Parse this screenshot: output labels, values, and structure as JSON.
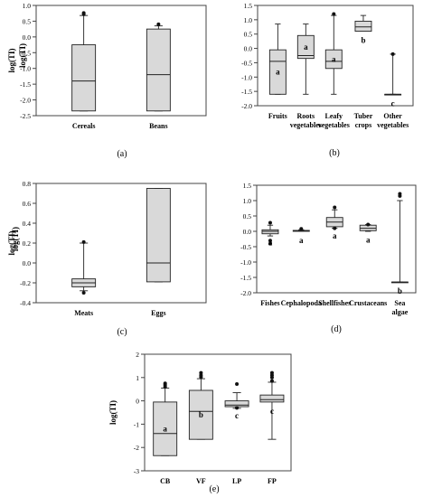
{
  "chart_data": [
    {
      "panel": "(a)",
      "type": "box",
      "ylabel": "log(TI)",
      "ylim": [
        -2.5,
        1.0
      ],
      "yticks": [
        -2.5,
        -2.0,
        -1.5,
        -1.0,
        -0.5,
        0.0,
        0.5,
        1.0
      ],
      "ytick_labels": [
        "-2.5",
        "-2.0",
        "-1.5",
        "-1.0",
        "-0.5",
        "0.0",
        "0.5",
        "1.0"
      ],
      "categories": [
        "Cereals",
        "Beans"
      ],
      "boxes": [
        {
          "whislo": -2.35,
          "q1": -2.35,
          "med": -1.4,
          "q3": -0.25,
          "whishi": 0.68,
          "fliers": [
            0.72,
            0.76
          ],
          "letter": ""
        },
        {
          "whislo": -2.35,
          "q1": -2.35,
          "med": -1.2,
          "q3": 0.25,
          "whishi": 0.35,
          "fliers": [
            0.4
          ],
          "letter": ""
        }
      ]
    },
    {
      "panel": "(b)",
      "type": "box",
      "ylabel": "log(TI)",
      "ylim": [
        -2.0,
        1.5
      ],
      "yticks": [
        -2.0,
        -1.5,
        -1.0,
        -0.5,
        0.0,
        0.5,
        1.0,
        1.5
      ],
      "ytick_labels": [
        "-2.0",
        "-1.5",
        "-1.0",
        "-0.5",
        "0.0",
        "0.5",
        "1.0",
        "1.5"
      ],
      "categories": [
        "Fruits",
        "Roots vegetables",
        "Leafy vegetables",
        "Tuber crops",
        "Other vegetables"
      ],
      "boxes": [
        {
          "whislo": -1.6,
          "q1": -1.6,
          "med": -0.45,
          "q3": -0.05,
          "whishi": 0.85,
          "fliers": [],
          "letter": "a"
        },
        {
          "whislo": -1.6,
          "q1": -0.35,
          "med": -0.25,
          "q3": 0.45,
          "whishi": 0.85,
          "fliers": [],
          "letter": "a"
        },
        {
          "whislo": -1.6,
          "q1": -0.7,
          "med": -0.45,
          "q3": -0.05,
          "whishi": 1.15,
          "fliers": [
            1.2
          ],
          "letter": "a"
        },
        {
          "whislo": 0.6,
          "q1": 0.6,
          "med": 0.75,
          "q3": 0.95,
          "whishi": 1.15,
          "fliers": [],
          "letter": "b"
        },
        {
          "whislo": -1.6,
          "q1": -1.6,
          "med": -1.6,
          "q3": -1.6,
          "whishi": -0.2,
          "fliers": [
            -0.2
          ],
          "letter": "c"
        }
      ]
    },
    {
      "panel": "(c)",
      "type": "box",
      "ylabel": "log(TI)",
      "ylim": [
        -0.4,
        0.8
      ],
      "yticks": [
        -0.4,
        -0.2,
        0.0,
        0.2,
        0.4,
        0.6,
        0.8
      ],
      "ytick_labels": [
        "-0.4",
        "-0.2",
        "0.0",
        "0.2",
        "0.4",
        "0.6",
        "0.8"
      ],
      "categories": [
        "Meats",
        "Eggs"
      ],
      "boxes": [
        {
          "whislo": -0.28,
          "q1": -0.24,
          "med": -0.2,
          "q3": -0.16,
          "whishi": 0.2,
          "fliers": [
            -0.3,
            0.21
          ],
          "letter": ""
        },
        {
          "whislo": -0.19,
          "q1": -0.19,
          "med": 0.0,
          "q3": 0.75,
          "whishi": 0.75,
          "fliers": [],
          "letter": ""
        }
      ]
    },
    {
      "panel": "(d)",
      "type": "box",
      "ylabel": "log(TI)",
      "ylim": [
        -2.0,
        1.5
      ],
      "yticks": [
        -2.0,
        -1.5,
        -1.0,
        -0.5,
        0.0,
        0.5,
        1.0,
        1.5
      ],
      "ytick_labels": [
        "-2.0",
        "-1.5",
        "-1.0",
        "-0.5",
        "0.0",
        "0.5",
        "1.0",
        "1.5"
      ],
      "categories": [
        "Fishes",
        "Cephalopoda",
        "Shellfishes",
        "Crustaceans",
        "Sea algae"
      ],
      "boxes": [
        {
          "whislo": -0.15,
          "q1": -0.08,
          "med": 0.0,
          "q3": 0.05,
          "whishi": 0.2,
          "fliers": [
            0.28,
            -0.3,
            -0.4
          ],
          "letter": "a"
        },
        {
          "whislo": 0.0,
          "q1": 0.0,
          "med": 0.02,
          "q3": 0.03,
          "whishi": 0.05,
          "fliers": [
            0.08
          ],
          "letter": "a"
        },
        {
          "whislo": 0.1,
          "q1": 0.15,
          "med": 0.3,
          "q3": 0.45,
          "whishi": 0.7,
          "fliers": [
            0.78,
            0.1
          ],
          "letter": "a"
        },
        {
          "whislo": 0.0,
          "q1": 0.02,
          "med": 0.1,
          "q3": 0.2,
          "whishi": 0.22,
          "fliers": [
            0.22
          ],
          "letter": "a"
        },
        {
          "whislo": -1.65,
          "q1": -1.65,
          "med": -1.65,
          "q3": -1.65,
          "whishi": 1.0,
          "fliers": [
            1.15,
            1.22
          ],
          "letter": "b"
        }
      ]
    },
    {
      "panel": "(e)",
      "type": "box",
      "ylabel": "log(TI)",
      "ylim": [
        -3,
        2
      ],
      "yticks": [
        -3,
        -2,
        -1,
        0,
        1,
        2
      ],
      "ytick_labels": [
        "-3",
        "-2",
        "-1",
        "0",
        "1",
        "2"
      ],
      "categories": [
        "CB",
        "VF",
        "LP",
        "FP"
      ],
      "boxes": [
        {
          "whislo": -2.35,
          "q1": -2.35,
          "med": -1.4,
          "q3": -0.05,
          "whishi": 0.55,
          "fliers": [
            0.6,
            0.68,
            0.75
          ],
          "letter": "a"
        },
        {
          "whislo": -1.65,
          "q1": -1.65,
          "med": -0.45,
          "q3": 0.45,
          "whishi": 0.95,
          "fliers": [
            1.02,
            1.1,
            1.2
          ],
          "letter": "b"
        },
        {
          "whislo": -0.32,
          "q1": -0.25,
          "med": -0.18,
          "q3": 0.0,
          "whishi": 0.35,
          "fliers": [
            0.72,
            -0.3
          ],
          "letter": "c"
        },
        {
          "whislo": -1.65,
          "q1": -0.05,
          "med": 0.05,
          "q3": 0.25,
          "whishi": 0.8,
          "fliers": [
            0.85,
            1.0,
            1.1,
            1.2
          ],
          "letter": "c"
        }
      ]
    }
  ]
}
